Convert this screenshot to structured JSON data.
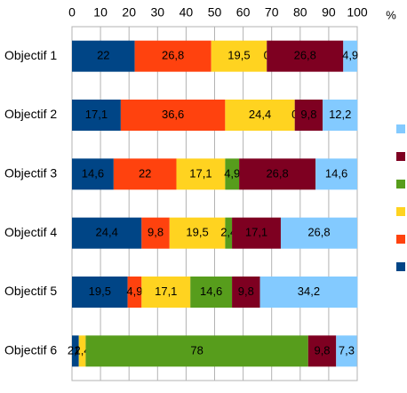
{
  "chart_data": {
    "type": "bar",
    "orientation": "horizontal",
    "stacked": true,
    "unit_label": "%",
    "categories": [
      "Objectif 1",
      "Objectif 2",
      "Objectif 3",
      "Objectif 4",
      "Objectif 5",
      "Objectif 6"
    ],
    "series": [
      {
        "color": "#004586",
        "values": [
          22,
          17.1,
          14.6,
          24.4,
          19.5,
          2.4
        ],
        "value_labels": [
          "22",
          "17,1",
          "14,6",
          "24,4",
          "19,5",
          "2,4"
        ]
      },
      {
        "color": "#ff420e",
        "values": [
          26.8,
          36.6,
          22,
          9.8,
          4.9,
          0
        ],
        "value_labels": [
          "26,8",
          "36,6",
          "22",
          "9,8",
          "4,9",
          "0"
        ]
      },
      {
        "color": "#ffd320",
        "values": [
          19.5,
          24.4,
          17.1,
          19.5,
          17.1,
          2.4
        ],
        "value_labels": [
          "19,5",
          "24,4",
          "17,1",
          "19,5",
          "17,1",
          "2,4"
        ]
      },
      {
        "color": "#579d1c",
        "values": [
          0,
          0,
          4.9,
          2.4,
          14.6,
          78
        ],
        "value_labels": [
          "0",
          "0",
          "4,9",
          "2,4",
          "14,6",
          "78"
        ]
      },
      {
        "color": "#7e0021",
        "values": [
          26.8,
          9.8,
          26.8,
          17.1,
          9.8,
          9.8
        ],
        "value_labels": [
          "26,8",
          "9,8",
          "26,8",
          "17,1",
          "9,8",
          "9,8"
        ]
      },
      {
        "color": "#83caff",
        "values": [
          4.9,
          12.2,
          14.6,
          26.8,
          34.2,
          7.3
        ],
        "value_labels": [
          "4,9",
          "12,2",
          "14,6",
          "26,8",
          "34,2",
          "7,3"
        ]
      }
    ],
    "xlim": [
      0,
      100
    ],
    "xticks": [
      0,
      10,
      20,
      30,
      40,
      50,
      60,
      70,
      80,
      90,
      100
    ],
    "grid": true,
    "legend": "right"
  }
}
